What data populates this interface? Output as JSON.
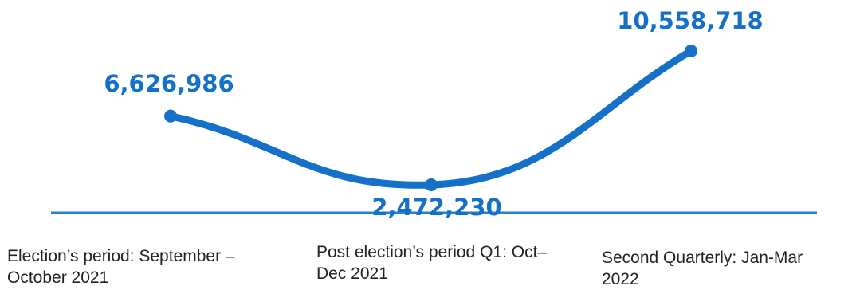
{
  "chart_data": {
    "type": "line",
    "title": "",
    "xlabel": "",
    "ylabel": "",
    "categories": [
      "Election’s period: September – October 2021",
      "Post election’s period Q1: Oct– Dec 2021",
      "Second Quarterly: Jan-Mar 2022"
    ],
    "series": [
      {
        "values": [
          6626986,
          2472230,
          10558718
        ],
        "value_labels": [
          "6,626,986",
          "2,472,230",
          "10,558,718"
        ]
      }
    ],
    "grid": false,
    "legend": "none",
    "line_color": "#1470c8",
    "label_color": "#1470c8",
    "baseline_color": "#2a7fd0"
  }
}
